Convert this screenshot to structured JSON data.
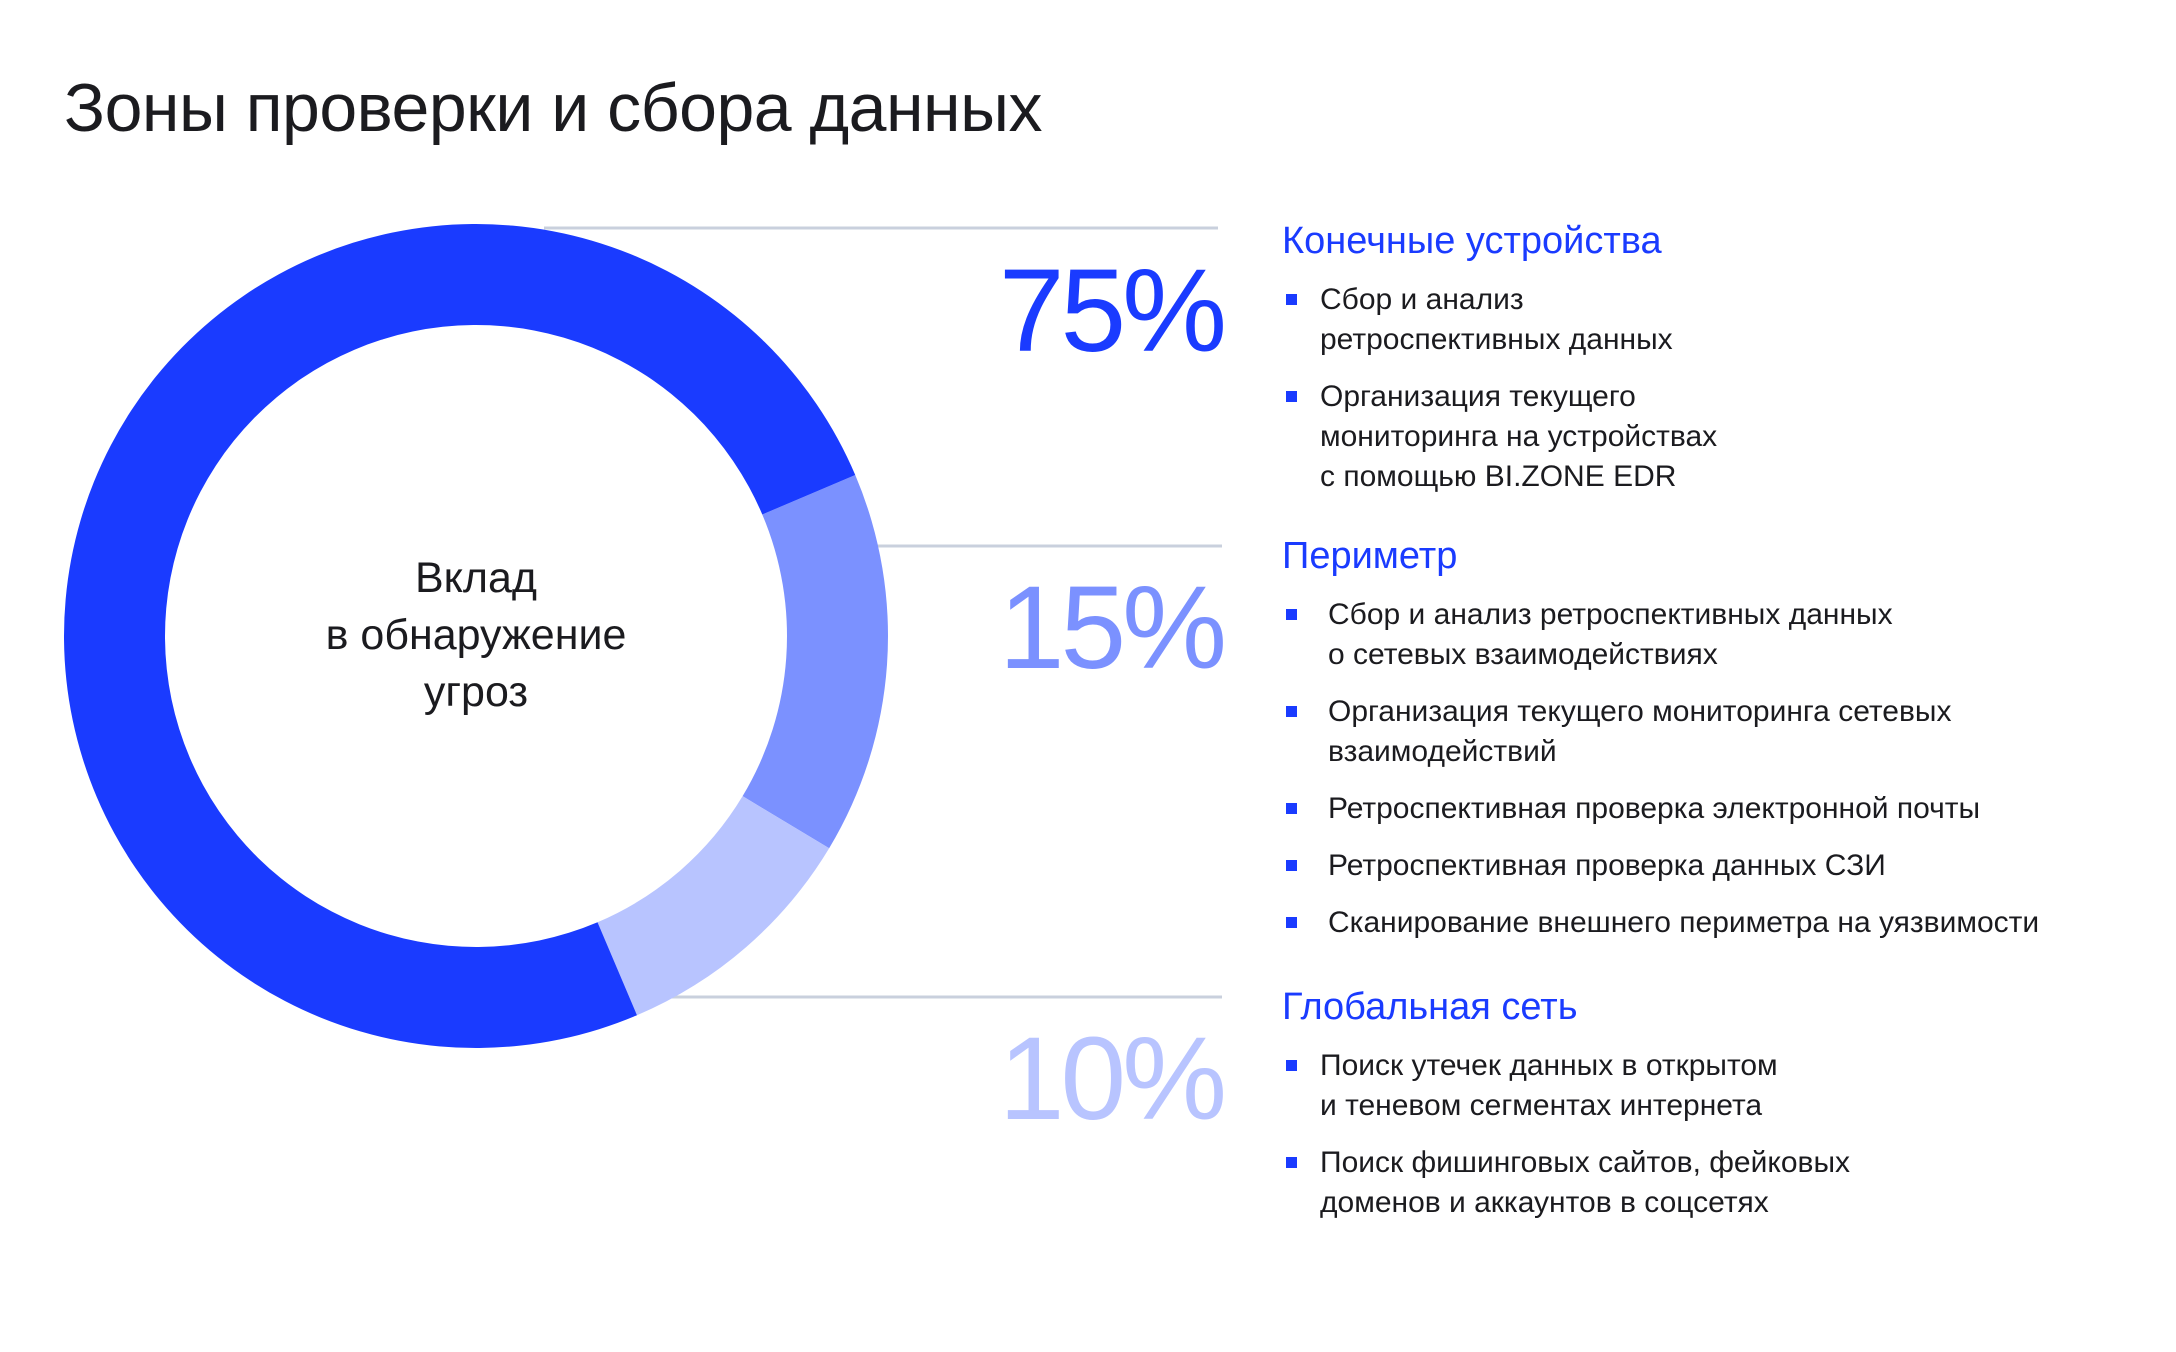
{
  "title": "Зоны проверки и сбора данных",
  "colors": {
    "primary": "#1a3bff",
    "medium": "#7b91ff",
    "light": "#b8c4ff",
    "divider": "#c9d0dd",
    "text": "#1b1b1f"
  },
  "chart_data": {
    "type": "pie",
    "variant": "donut",
    "center_label": [
      "Вклад",
      "в обнаружение",
      "угроз"
    ],
    "categories": [
      "Конечные устройства",
      "Периметр",
      "Глобальная сеть"
    ],
    "values": [
      75,
      15,
      10
    ],
    "value_labels": [
      "75%",
      "15%",
      "10%"
    ],
    "colors": [
      "#1a3bff",
      "#7b91ff",
      "#b8c4ff"
    ]
  },
  "sections": [
    {
      "heading": "Конечные устройства",
      "items": [
        [
          "Сбор и анализ",
          "ретроспективных данных"
        ],
        [
          "Организация текущего",
          "мониторинга на устройствах",
          "с помощью BI.ZONE EDR"
        ]
      ]
    },
    {
      "heading": "Периметр",
      "items": [
        [
          "Сбор и анализ ретроспективных данных",
          "о сетевых взаимодействиях"
        ],
        [
          "Организация текущего мониторинга сетевых",
          "взаимодействий"
        ],
        [
          "Ретроспективная проверка электронной почты"
        ],
        [
          "Ретроспективная проверка данных СЗИ"
        ],
        [
          "Сканирование внешнего периметра на уязвимости"
        ]
      ]
    },
    {
      "heading": "Глобальная сеть",
      "items": [
        [
          "Поиск утечек данных в открытом",
          "и теневом сегментах интернета"
        ],
        [
          "Поиск фишинговых сайтов, фейковых",
          "доменов и аккаунтов в соцсетях"
        ]
      ]
    }
  ]
}
